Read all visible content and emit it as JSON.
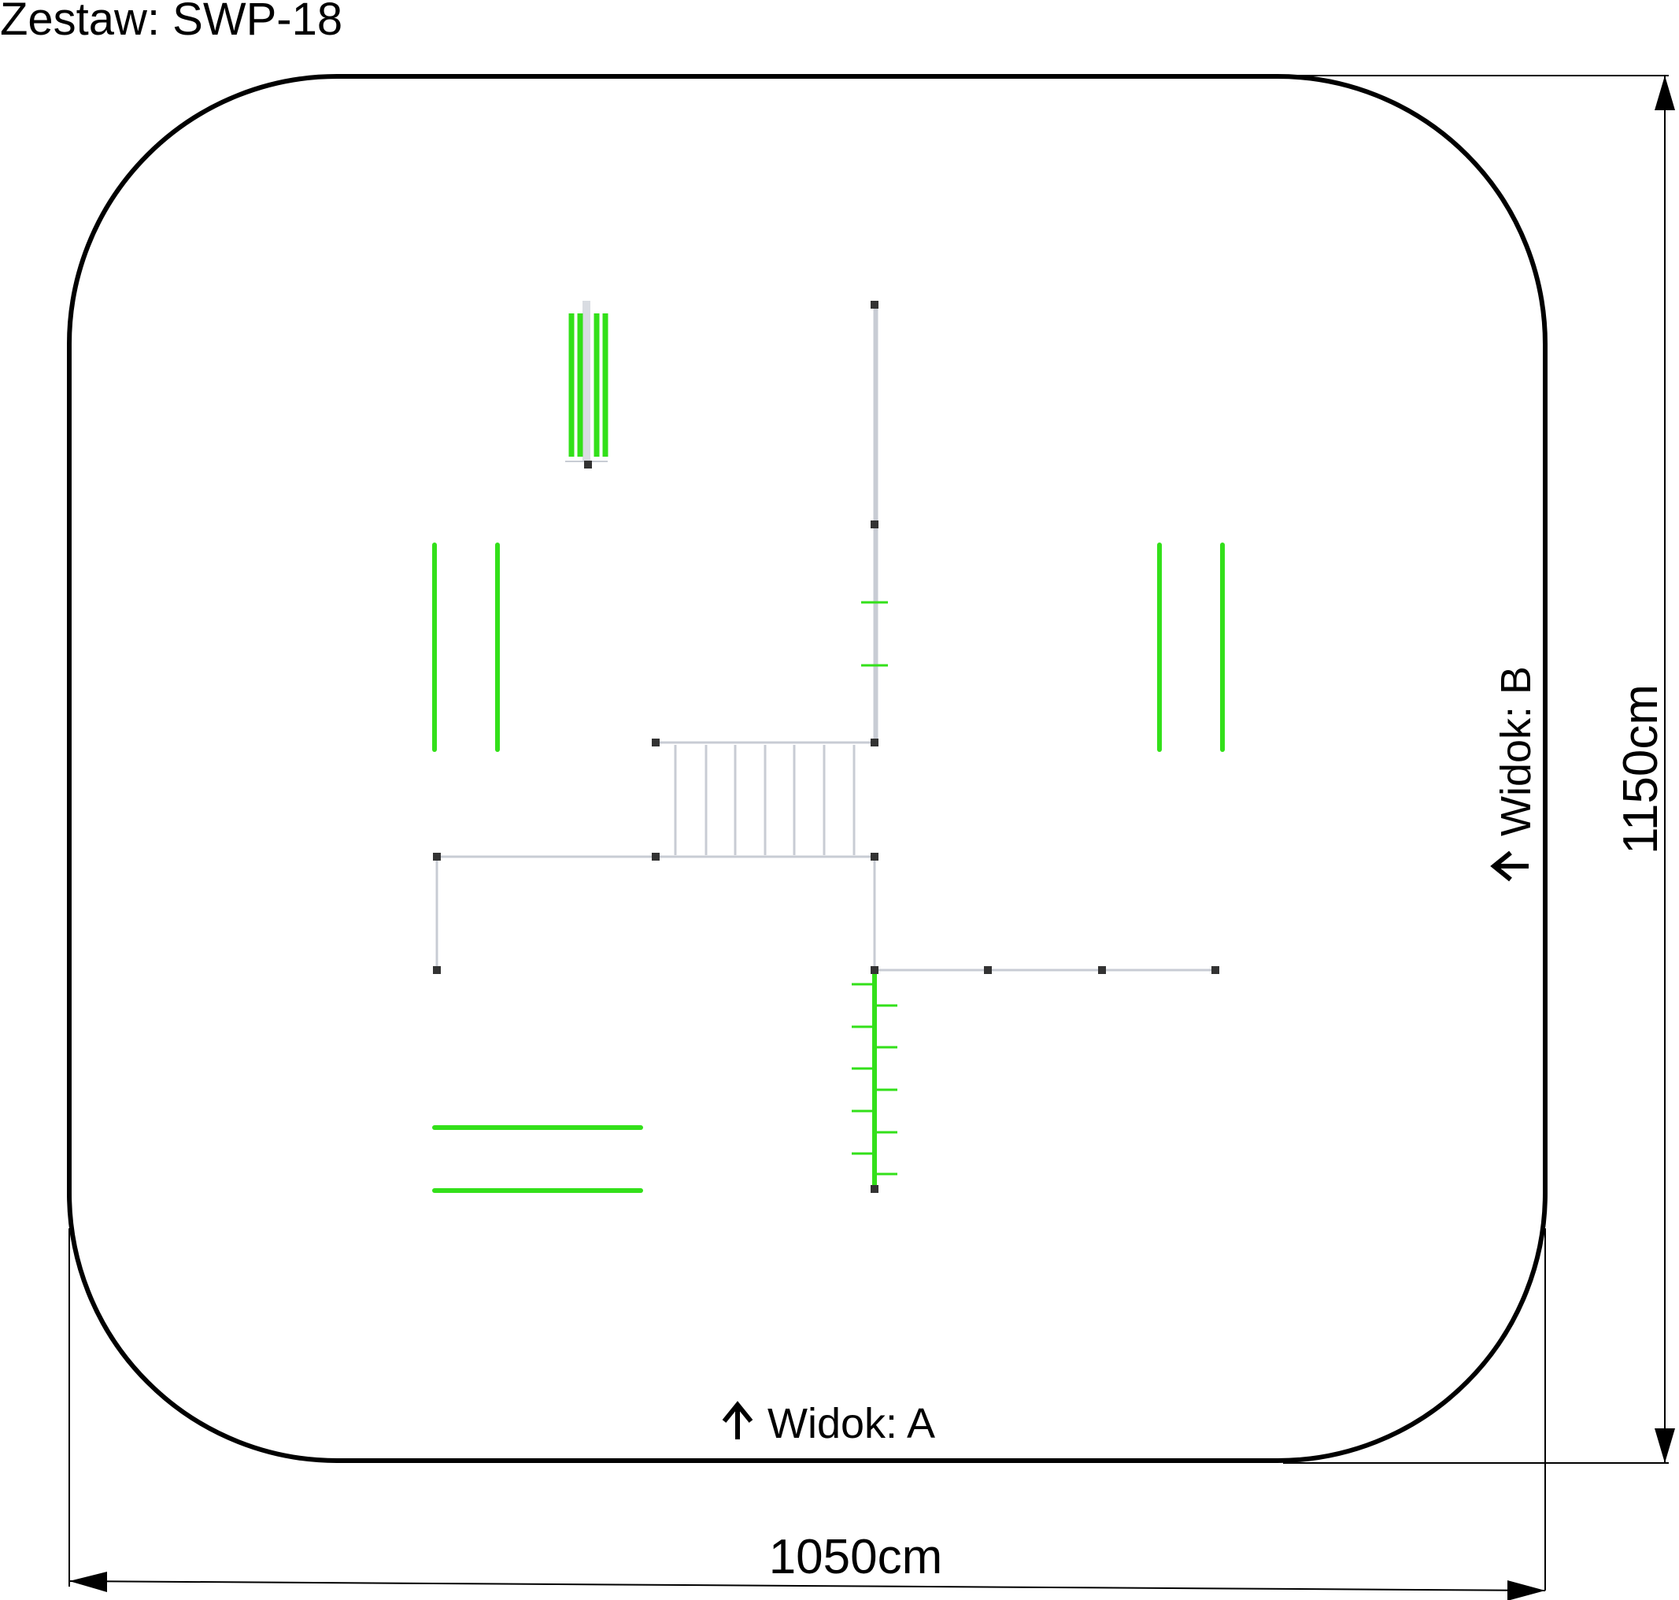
{
  "title": "Zestaw: SWP-18",
  "views": {
    "view_a": "Widok: A",
    "view_b": "Widok: B"
  },
  "dimensions": {
    "width_label": "1050cm",
    "height_label": "1150cm"
  },
  "colors": {
    "outline": "#000000",
    "equipment_green": "#33e01a",
    "frame_grey": "#c8ccd4",
    "post": "#333333"
  }
}
